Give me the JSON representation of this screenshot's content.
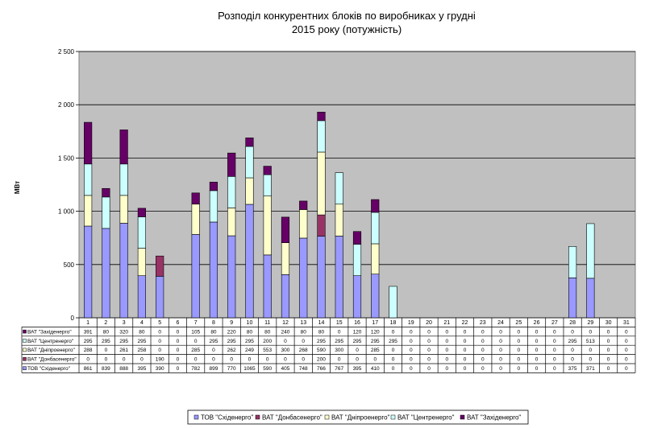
{
  "chart_data": {
    "type": "bar",
    "stacked": true,
    "title_line1": "Розподіл конкурентних блоків по виробниках у грудні",
    "title_line2": "2015 року (потужність)",
    "ylabel": "МВт",
    "ylim": [
      0,
      2500
    ],
    "yticks": [
      0,
      500,
      1000,
      1500,
      2000,
      2500
    ],
    "ytick_labels": [
      "0",
      "500",
      "1 000",
      "1 500",
      "2 000",
      "2 500"
    ],
    "grid": true,
    "legend_position": "bottom",
    "categories": [
      "1",
      "2",
      "3",
      "4",
      "5",
      "6",
      "7",
      "8",
      "9",
      "10",
      "11",
      "12",
      "13",
      "14",
      "15",
      "16",
      "17",
      "18",
      "19",
      "20",
      "21",
      "22",
      "23",
      "24",
      "25",
      "26",
      "27",
      "28",
      "29",
      "30",
      "31"
    ],
    "series": [
      {
        "name": "ТОВ \"Східенерго\"",
        "color": "#9999ff",
        "values": [
          861,
          839,
          888,
          395,
          390,
          0,
          782,
          899,
          770,
          1065,
          590,
          405,
          748,
          766,
          767,
          395,
          410,
          0,
          0,
          0,
          0,
          0,
          0,
          0,
          0,
          0,
          0,
          375,
          371,
          0,
          0
        ]
      },
      {
        "name": "ВАТ \"Донбасенерго\"",
        "color": "#993366",
        "values": [
          0,
          0,
          0,
          0,
          190,
          0,
          0,
          0,
          0,
          0,
          0,
          0,
          0,
          200,
          0,
          0,
          0,
          0,
          0,
          0,
          0,
          0,
          0,
          0,
          0,
          0,
          0,
          0,
          0,
          0,
          0
        ]
      },
      {
        "name": "ВАТ \"Дніпроенерго\"",
        "color": "#ffffcc",
        "values": [
          288,
          0,
          261,
          258,
          0,
          0,
          285,
          0,
          262,
          249,
          553,
          300,
          268,
          590,
          300,
          0,
          285,
          0,
          0,
          0,
          0,
          0,
          0,
          0,
          0,
          0,
          0,
          0,
          0,
          0,
          0
        ]
      },
      {
        "name": "ВАТ \"Центренерго\"",
        "color": "#ccffff",
        "values": [
          295,
          295,
          295,
          295,
          0,
          0,
          0,
          295,
          295,
          295,
          200,
          0,
          0,
          295,
          295,
          295,
          295,
          295,
          0,
          0,
          0,
          0,
          0,
          0,
          0,
          0,
          0,
          295,
          513,
          0,
          0
        ]
      },
      {
        "name": "ВАТ \"Західенерго\"",
        "color": "#660066",
        "values": [
          391,
          80,
          320,
          80,
          0,
          0,
          105,
          80,
          220,
          80,
          80,
          240,
          80,
          80,
          0,
          120,
          120,
          0,
          0,
          0,
          0,
          0,
          0,
          0,
          0,
          0,
          0,
          0,
          0,
          0,
          0
        ]
      }
    ],
    "table_row_order": [
      4,
      3,
      2,
      1,
      0
    ]
  }
}
